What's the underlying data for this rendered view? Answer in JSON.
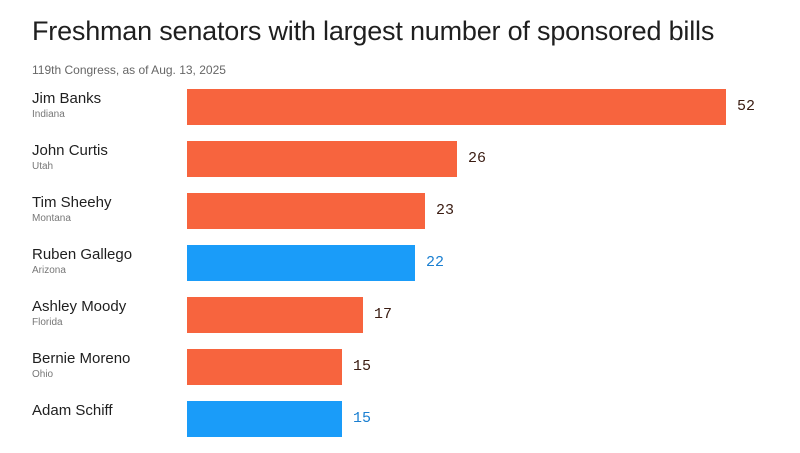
{
  "chart_data": {
    "type": "bar",
    "orientation": "horizontal",
    "title": "Freshman senators with largest number of sponsored bills",
    "subtitle": "119th Congress, as of Aug. 13, 2025",
    "categories": [
      "Jim Banks",
      "John Curtis",
      "Tim Sheehy",
      "Ruben Gallego",
      "Ashley Moody",
      "Bernie Moreno",
      "Adam Schiff"
    ],
    "states": [
      "Indiana",
      "Utah",
      "Montana",
      "Arizona",
      "Florida",
      "Ohio",
      ""
    ],
    "parties": [
      "R",
      "R",
      "R",
      "D",
      "R",
      "R",
      "D"
    ],
    "values": [
      52,
      26,
      23,
      22,
      17,
      15,
      15
    ],
    "xlim": [
      0,
      52
    ],
    "grid": false,
    "legend": "none"
  },
  "colors": {
    "R": "#f7643e",
    "D": "#1a9cf9",
    "R_label": "#3a1c12",
    "D_label": "#1a7fd1"
  }
}
